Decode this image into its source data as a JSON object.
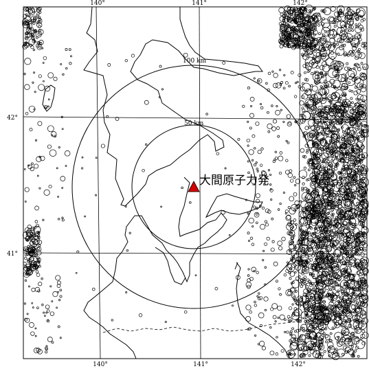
{
  "map": {
    "lon_ticks": [
      "140°",
      "141°",
      "142°"
    ],
    "lat_ticks": [
      "42°",
      "41°"
    ],
    "ring_labels": [
      "100 km",
      "50 km"
    ],
    "site": {
      "label": "大間原子力発",
      "marker_color": "#d40000"
    },
    "epicenter_color": "#000000",
    "coast_color": "#000000"
  }
}
